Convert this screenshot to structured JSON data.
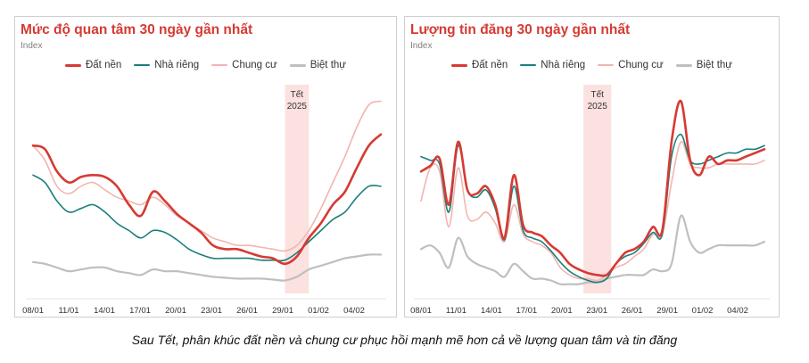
{
  "caption": "Sau Tết, phân khúc đất nền và chung cư phục hồi mạnh mẽ hơn cả về lượng quan tâm và tin đăng",
  "colors": {
    "dat_nen": "#d63a33",
    "nha_rieng": "#1a7f7a",
    "chung_cu": "#f2b5b0",
    "biet_thu": "#bfbfbf",
    "tet_band": "#fbe1df"
  },
  "chart_data": [
    {
      "type": "line",
      "title": "Mức độ quan tâm 30 ngày gần nhất",
      "subtitle": "Index",
      "tet_label": [
        "Tết",
        "2025"
      ],
      "tet_range": [
        21,
        23
      ],
      "x_ticks": [
        "08/01",
        "11/01",
        "14/01",
        "17/01",
        "20/01",
        "23/01",
        "26/01",
        "29/01",
        "01/02",
        "04/02"
      ],
      "x": [
        0,
        1,
        2,
        3,
        4,
        5,
        6,
        7,
        8,
        9,
        10,
        11,
        12,
        13,
        14,
        15,
        16,
        17,
        18,
        19,
        20,
        21,
        22,
        23,
        24,
        25,
        26,
        27,
        28,
        29
      ],
      "ylim": [
        0,
        110
      ],
      "legend_position": "top",
      "grid": false,
      "series": [
        {
          "name": "Đất nền",
          "key": "dat_nen",
          "width": 2.6,
          "values": [
            80,
            78,
            66,
            60,
            63,
            64,
            63,
            58,
            48,
            42,
            55,
            50,
            43,
            38,
            33,
            26,
            24,
            24,
            22,
            20,
            19,
            16,
            20,
            30,
            38,
            48,
            55,
            68,
            80,
            86
          ]
        },
        {
          "name": "Nhà riêng",
          "key": "nha_rieng",
          "width": 1.6,
          "values": [
            64,
            60,
            50,
            44,
            46,
            48,
            44,
            38,
            34,
            30,
            34,
            33,
            29,
            24,
            21,
            19,
            19,
            19,
            19,
            18,
            18,
            18,
            22,
            28,
            34,
            40,
            44,
            52,
            58,
            58
          ]
        },
        {
          "name": "Chung cư",
          "key": "chung_cu",
          "width": 1.6,
          "values": [
            80,
            72,
            58,
            54,
            58,
            60,
            56,
            52,
            50,
            48,
            52,
            48,
            42,
            38,
            34,
            30,
            28,
            26,
            26,
            25,
            24,
            23,
            26,
            34,
            46,
            60,
            74,
            90,
            102,
            104
          ]
        },
        {
          "name": "Biệt thự",
          "key": "biet_thu",
          "width": 2.2,
          "values": [
            17,
            16,
            14,
            12,
            13,
            14,
            14,
            12,
            11,
            10,
            13,
            12,
            12,
            11,
            10,
            9,
            8.5,
            8,
            8,
            8,
            7.5,
            7,
            9,
            13,
            15,
            17,
            19,
            20,
            21,
            21
          ]
        }
      ]
    },
    {
      "type": "line",
      "title": "Lượng tin đăng 30 ngày gần nhất",
      "subtitle": "Index",
      "tet_label": [
        "Tết",
        "2025"
      ],
      "tet_range": [
        17.5,
        20.5
      ],
      "x_ticks": [
        "08/01",
        "11/01",
        "14/01",
        "17/01",
        "20/01",
        "23/01",
        "26/01",
        "29/01",
        "01/02",
        "04/02"
      ],
      "x": [
        0,
        1,
        2,
        3,
        4,
        5,
        6,
        7,
        8,
        9,
        10,
        11,
        12,
        13,
        14,
        15,
        16,
        17,
        18,
        19,
        20,
        21,
        22,
        23,
        24,
        25,
        26,
        27,
        28,
        29,
        30,
        31,
        32,
        33,
        34,
        35,
        36,
        37
      ],
      "ylim": [
        0,
        110
      ],
      "legend_position": "top",
      "grid": false,
      "series": [
        {
          "name": "Đất nền",
          "key": "dat_nen",
          "width": 2.6,
          "values": [
            66,
            69,
            73,
            48,
            82,
            56,
            54,
            58,
            48,
            30,
            64,
            37,
            33,
            31,
            26,
            22,
            16,
            13,
            11,
            10,
            10,
            16,
            22,
            24,
            28,
            36,
            34,
            82,
            104,
            72,
            64,
            74,
            70,
            72,
            72,
            74,
            76,
            78
          ]
        },
        {
          "name": "Nhà riêng",
          "key": "nha_rieng",
          "width": 1.6,
          "values": [
            74,
            72,
            70,
            44,
            80,
            56,
            52,
            56,
            46,
            29,
            58,
            34,
            30,
            28,
            23,
            17,
            12,
            9,
            7,
            6,
            8,
            16,
            20,
            22,
            27,
            33,
            32,
            74,
            86,
            72,
            70,
            72,
            74,
            76,
            76,
            78,
            78,
            80
          ]
        },
        {
          "name": "Chung cư",
          "key": "chung_cu",
          "width": 1.6,
          "values": [
            50,
            68,
            66,
            36,
            68,
            42,
            40,
            44,
            38,
            28,
            48,
            32,
            28,
            26,
            22,
            14,
            10,
            8,
            8,
            7,
            10,
            14,
            16,
            20,
            24,
            32,
            32,
            60,
            82,
            70,
            68,
            68,
            70,
            70,
            70,
            70,
            70,
            72
          ]
        },
        {
          "name": "Biệt thự",
          "key": "biet_thu",
          "width": 2.2,
          "values": [
            24,
            26,
            22,
            14,
            30,
            20,
            16,
            14,
            12,
            9,
            16,
            12,
            8,
            8,
            7,
            5,
            5,
            5,
            6,
            6,
            8,
            9,
            10,
            10,
            10,
            13,
            12,
            16,
            42,
            28,
            22,
            24,
            26,
            26,
            26,
            26,
            26,
            28
          ]
        }
      ]
    }
  ]
}
